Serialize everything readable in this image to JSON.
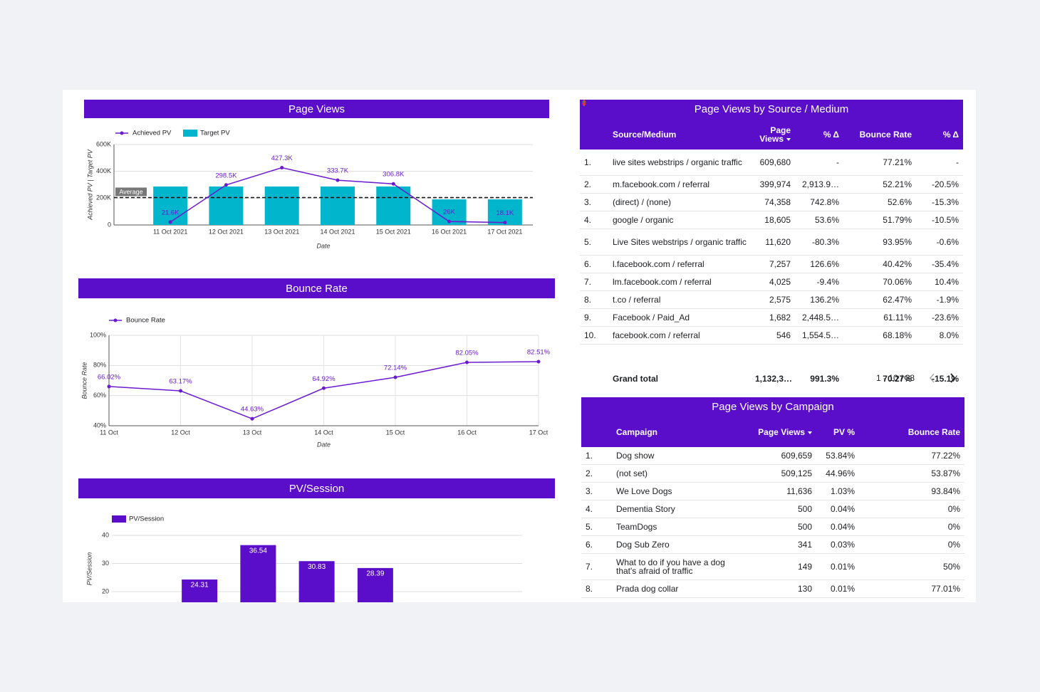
{
  "chart_data": [
    {
      "type": "combo",
      "title": "Page Views",
      "x_label": "Date",
      "y_label": "Achieved PV | Target PV",
      "categories": [
        "11 Oct 2021",
        "12 Oct 2021",
        "13 Oct 2021",
        "14 Oct 2021",
        "15 Oct 2021",
        "16 Oct 2021",
        "17 Oct 2021"
      ],
      "series": [
        {
          "name": "Achieved PV",
          "kind": "line",
          "color": "#6a1bd0",
          "values": [
            21600,
            298500,
            427300,
            333700,
            306800,
            26000,
            18100
          ],
          "value_labels": [
            "21.6K",
            "298.5K",
            "427.3K",
            "333.7K",
            "306.8K",
            "26K",
            "18.1K"
          ]
        },
        {
          "name": "Target PV",
          "kind": "bar",
          "color": "#00b5cc",
          "values": [
            287000,
            287000,
            287000,
            287000,
            287000,
            191000,
            191000
          ]
        }
      ],
      "reference_line": {
        "label": "Average",
        "value": 204571
      },
      "ylim": [
        0,
        600000
      ],
      "yticks": [
        0,
        {
          "value": 200000,
          "label": "200K"
        },
        {
          "value": 400000,
          "label": "400K"
        },
        {
          "value": 600000,
          "label": "600K"
        }
      ],
      "grid": true
    },
    {
      "type": "line",
      "title": "Bounce Rate",
      "x_label": "Date",
      "y_label": "Bounce Rate",
      "categories": [
        "11 Oct",
        "12 Oct",
        "13 Oct",
        "14 Oct",
        "15 Oct",
        "16 Oct",
        "17 Oct"
      ],
      "series": [
        {
          "name": "Bounce Rate",
          "color": "#6a1bd0",
          "values": [
            66.02,
            63.17,
            44.63,
            64.92,
            72.14,
            82.05,
            82.51
          ],
          "value_labels": [
            "66.02%",
            "63.17%",
            "44.63%",
            "64.92%",
            "72.14%",
            "82.05%",
            "82.51%"
          ]
        }
      ],
      "ylim": [
        40,
        100
      ],
      "yticks": [
        {
          "value": 40,
          "label": "40%"
        },
        {
          "value": 60,
          "label": "60%"
        },
        {
          "value": 80,
          "label": "80%"
        },
        {
          "value": 100,
          "label": "100%"
        }
      ],
      "grid": true
    },
    {
      "type": "bar",
      "title": "PV/Session",
      "y_label": "PV/Session",
      "categories": [
        null,
        null,
        null,
        null
      ],
      "series": [
        {
          "name": "PV/Session",
          "color": "#5b0ec9",
          "values": [
            24.31,
            36.54,
            30.83,
            28.39
          ]
        }
      ],
      "ylim": [
        0,
        40
      ],
      "yticks": [
        20,
        30,
        40
      ],
      "grid": true
    }
  ],
  "tables": [
    {
      "title": "Page Views by Source / Medium",
      "columns": [
        "Source/Medium",
        "Page Views",
        "% Δ",
        "Bounce Rate",
        "% Δ"
      ],
      "rows": [
        [
          "1.",
          "live sites webstrips / organic traffic",
          "609,680",
          "-",
          "77.21%",
          "-"
        ],
        [
          "2.",
          "m.facebook.com / referral",
          "399,974",
          "2,913.9…",
          "52.21%",
          "-20.5%"
        ],
        [
          "3.",
          "(direct) / (none)",
          "74,358",
          "742.8%",
          "52.6%",
          "-15.3%"
        ],
        [
          "4.",
          "google / organic",
          "18,605",
          "53.6%",
          "51.79%",
          "-10.5%"
        ],
        [
          "5.",
          "Live Sites webstrips / organic traffic",
          "11,620",
          "-80.3%",
          "93.95%",
          "-0.6%"
        ],
        [
          "6.",
          "l.facebook.com / referral",
          "7,257",
          "126.6%",
          "40.42%",
          "-35.4%"
        ],
        [
          "7.",
          "lm.facebook.com / referral",
          "4,025",
          "-9.4%",
          "70.06%",
          "10.4%"
        ],
        [
          "8.",
          "t.co / referral",
          "2,575",
          "136.2%",
          "62.47%",
          "-1.9%"
        ],
        [
          "9.",
          "Facebook / Paid_Ad",
          "1,682",
          "2,448.5…",
          "61.11%",
          "-23.6%"
        ],
        [
          "10.",
          "facebook.com / referral",
          "546",
          "1,554.5…",
          "68.18%",
          "8.0%"
        ]
      ],
      "total": [
        "Grand total",
        "1,132,3…",
        "991.3%",
        "70.27%",
        "-15.1%"
      ],
      "pagination": "1 - 10 / 38"
    },
    {
      "title": "Page Views by Campaign",
      "columns": [
        "Campaign",
        "Page Views",
        "PV %",
        "Bounce Rate"
      ],
      "rows": [
        [
          "1.",
          "Dog show",
          "609,659",
          "53.84%",
          "77.22%"
        ],
        [
          "2.",
          "(not set)",
          "509,125",
          "44.96%",
          "53.87%"
        ],
        [
          "3.",
          "We Love Dogs",
          "11,636",
          "1.03%",
          "93.84%"
        ],
        [
          "4.",
          "Dementia Story",
          "500",
          "0.04%",
          "0%"
        ],
        [
          "5.",
          "TeamDogs",
          "500",
          "0.04%",
          "0%"
        ],
        [
          "6.",
          "Dog Sub Zero",
          "341",
          "0.03%",
          "0%"
        ],
        [
          "7.",
          "What to do if you have a dog that's afraid of traffic",
          "149",
          "0.01%",
          "50%"
        ],
        [
          "8.",
          "Prada dog collar",
          "130",
          "0.01%",
          "77.01%"
        ]
      ]
    }
  ]
}
